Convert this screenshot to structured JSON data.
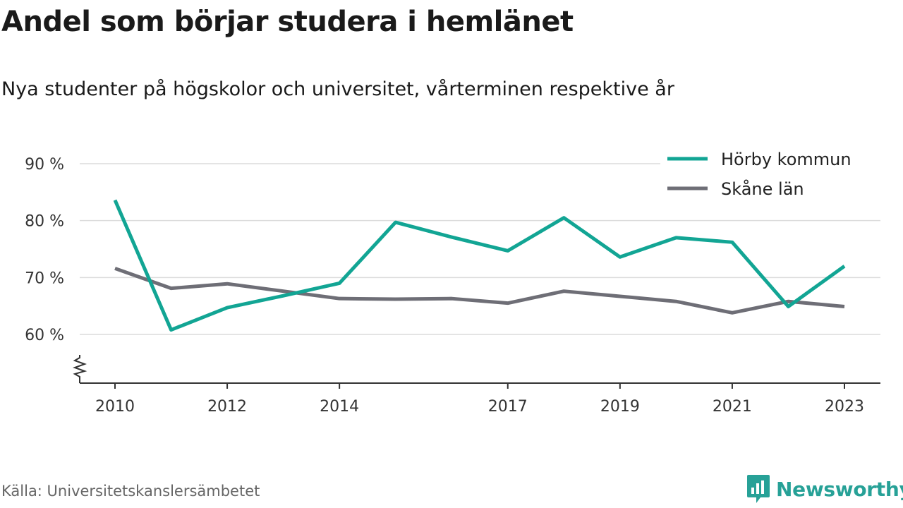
{
  "title": "Andel som börjar studera i hemlänet",
  "subtitle": "Nya studenter på högskolor och universitet, vårterminen respektive år",
  "source": "Källa: Universitetskanslersämbetet",
  "brand": "Newsworthy",
  "colors": {
    "horby": "#12a594",
    "skane": "#6e6e76",
    "brand": "#27a197"
  },
  "chart_data": {
    "type": "line",
    "title": "Andel som börjar studera i hemlänet",
    "subtitle": "Nya studenter på högskolor och universitet, vårterminen respektive år",
    "x": [
      2010,
      2011,
      2012,
      2013,
      2014,
      2015,
      2016,
      2017,
      2018,
      2019,
      2020,
      2021,
      2022,
      2023
    ],
    "x_ticks": [
      "2010",
      "2012",
      "2014",
      "2017",
      "2019",
      "2021",
      "2023"
    ],
    "y_ticks": [
      "60 %",
      "70 %",
      "80 %",
      "90 %"
    ],
    "ylim": [
      52,
      92
    ],
    "y_unit": "%",
    "broken_axis": true,
    "grid": true,
    "legend_position": "top-right",
    "series": [
      {
        "name": "Hörby kommun",
        "color": "#12a594",
        "values": [
          83.6,
          60.8,
          64.7,
          66.8,
          69.0,
          79.7,
          77.1,
          74.7,
          80.5,
          73.6,
          77.0,
          76.2,
          64.9,
          72.0
        ]
      },
      {
        "name": "Skåne län",
        "color": "#6e6e76",
        "values": [
          71.6,
          68.1,
          68.9,
          67.6,
          66.3,
          66.2,
          66.3,
          65.5,
          67.6,
          66.7,
          65.8,
          63.8,
          65.8,
          64.9
        ]
      }
    ]
  }
}
